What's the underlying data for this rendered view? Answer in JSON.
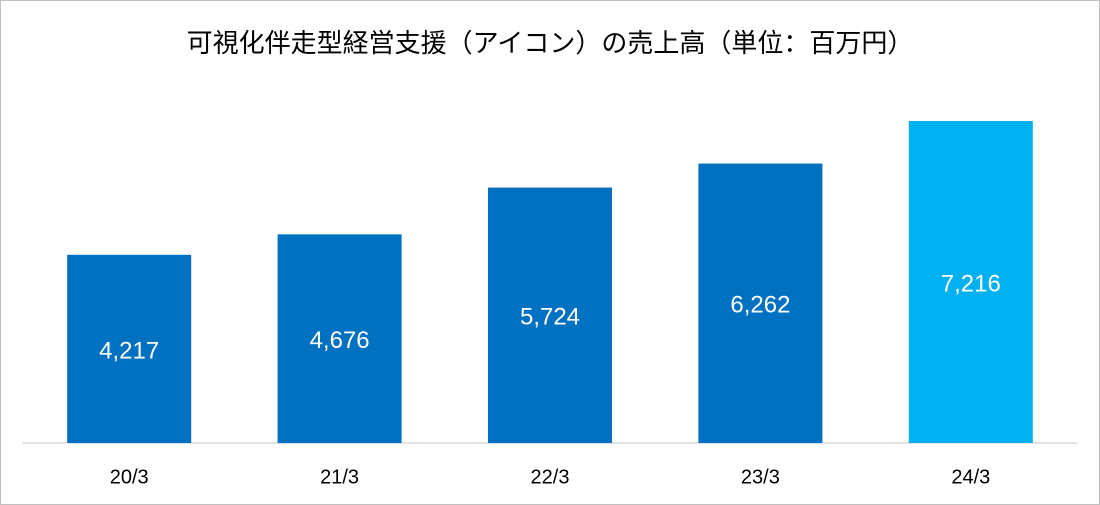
{
  "chart_data": {
    "type": "bar",
    "title": "可視化伴走型経営支援（アイコン）の売上高（単位：百万円）",
    "categories": [
      "20/3",
      "21/3",
      "22/3",
      "23/3",
      "24/3"
    ],
    "values": [
      4217,
      4676,
      5724,
      6262,
      7216
    ],
    "value_labels": [
      "4,217",
      "4,676",
      "5,724",
      "6,262",
      "7,216"
    ],
    "colors": [
      "#0070c0",
      "#0070c0",
      "#0070c0",
      "#0070c0",
      "#00b0f0"
    ]
  }
}
